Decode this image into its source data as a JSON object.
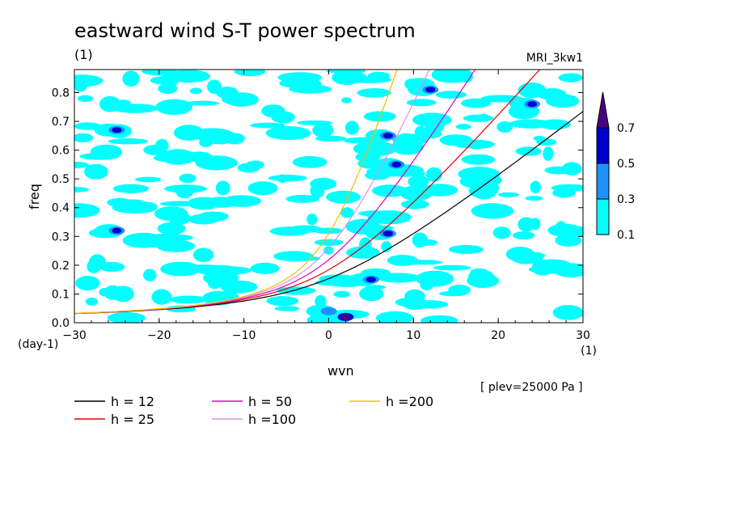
{
  "chart_data": {
    "type": "contour",
    "title": "eastward wind S-T power spectrum",
    "subtitle_left": "(1)",
    "subtitle_right": "MRI_3kw1",
    "xlabel": "wvn",
    "ylabel": "freq",
    "x_unit": "(1)",
    "y_unit": "(day-1)",
    "xlim": [
      -30,
      30
    ],
    "ylim": [
      0,
      0.88
    ],
    "xticks": [
      -30,
      -20,
      -10,
      0,
      10,
      20,
      30
    ],
    "yticks": [
      0.0,
      0.1,
      0.2,
      0.3,
      0.4,
      0.5,
      0.6,
      0.7,
      0.8
    ],
    "xtick_labels": [
      "−30",
      "−20",
      "−10",
      "0",
      "10",
      "20",
      "30"
    ],
    "ytick_labels": [
      "0.0",
      "0.1",
      "0.2",
      "0.3",
      "0.4",
      "0.5",
      "0.6",
      "0.7",
      "0.8"
    ],
    "note": "[ plev=25000 Pa ]",
    "colorbar": {
      "levels": [
        0.1,
        0.3,
        0.5,
        0.7
      ],
      "labels": [
        "0.1",
        "0.3",
        "0.5",
        "0.7"
      ],
      "colors": [
        "#00ffff",
        "#1e90ff",
        "#0000cd",
        "#4b0082"
      ]
    },
    "dispersion_curves": [
      {
        "label": "h = 12",
        "h": 12,
        "color": "#000000"
      },
      {
        "label": "h = 25",
        "h": 25,
        "color": "#e00000"
      },
      {
        "label": "h = 50",
        "h": 50,
        "color": "#e000c0"
      },
      {
        "label": "h =100",
        "h": 100,
        "color": "#e090e0"
      },
      {
        "label": "h =200",
        "h": 200,
        "color": "#f0c000"
      }
    ],
    "contour_patches": [
      {
        "x": 2,
        "y": 0.02,
        "level": 0.7
      },
      {
        "x": 5,
        "y": 0.15,
        "level": 0.5
      },
      {
        "x": 8,
        "y": 0.55,
        "level": 0.5
      },
      {
        "x": 7,
        "y": 0.65,
        "level": 0.5
      },
      {
        "x": 12,
        "y": 0.81,
        "level": 0.5
      },
      {
        "x": -25,
        "y": 0.67,
        "level": 0.5
      },
      {
        "x": 24,
        "y": 0.76,
        "level": 0.5
      },
      {
        "x": 7,
        "y": 0.31,
        "level": 0.5
      },
      {
        "x": -25,
        "y": 0.32,
        "level": 0.5
      },
      {
        "x": 0,
        "y": 0.04,
        "level": 0.3
      }
    ]
  }
}
